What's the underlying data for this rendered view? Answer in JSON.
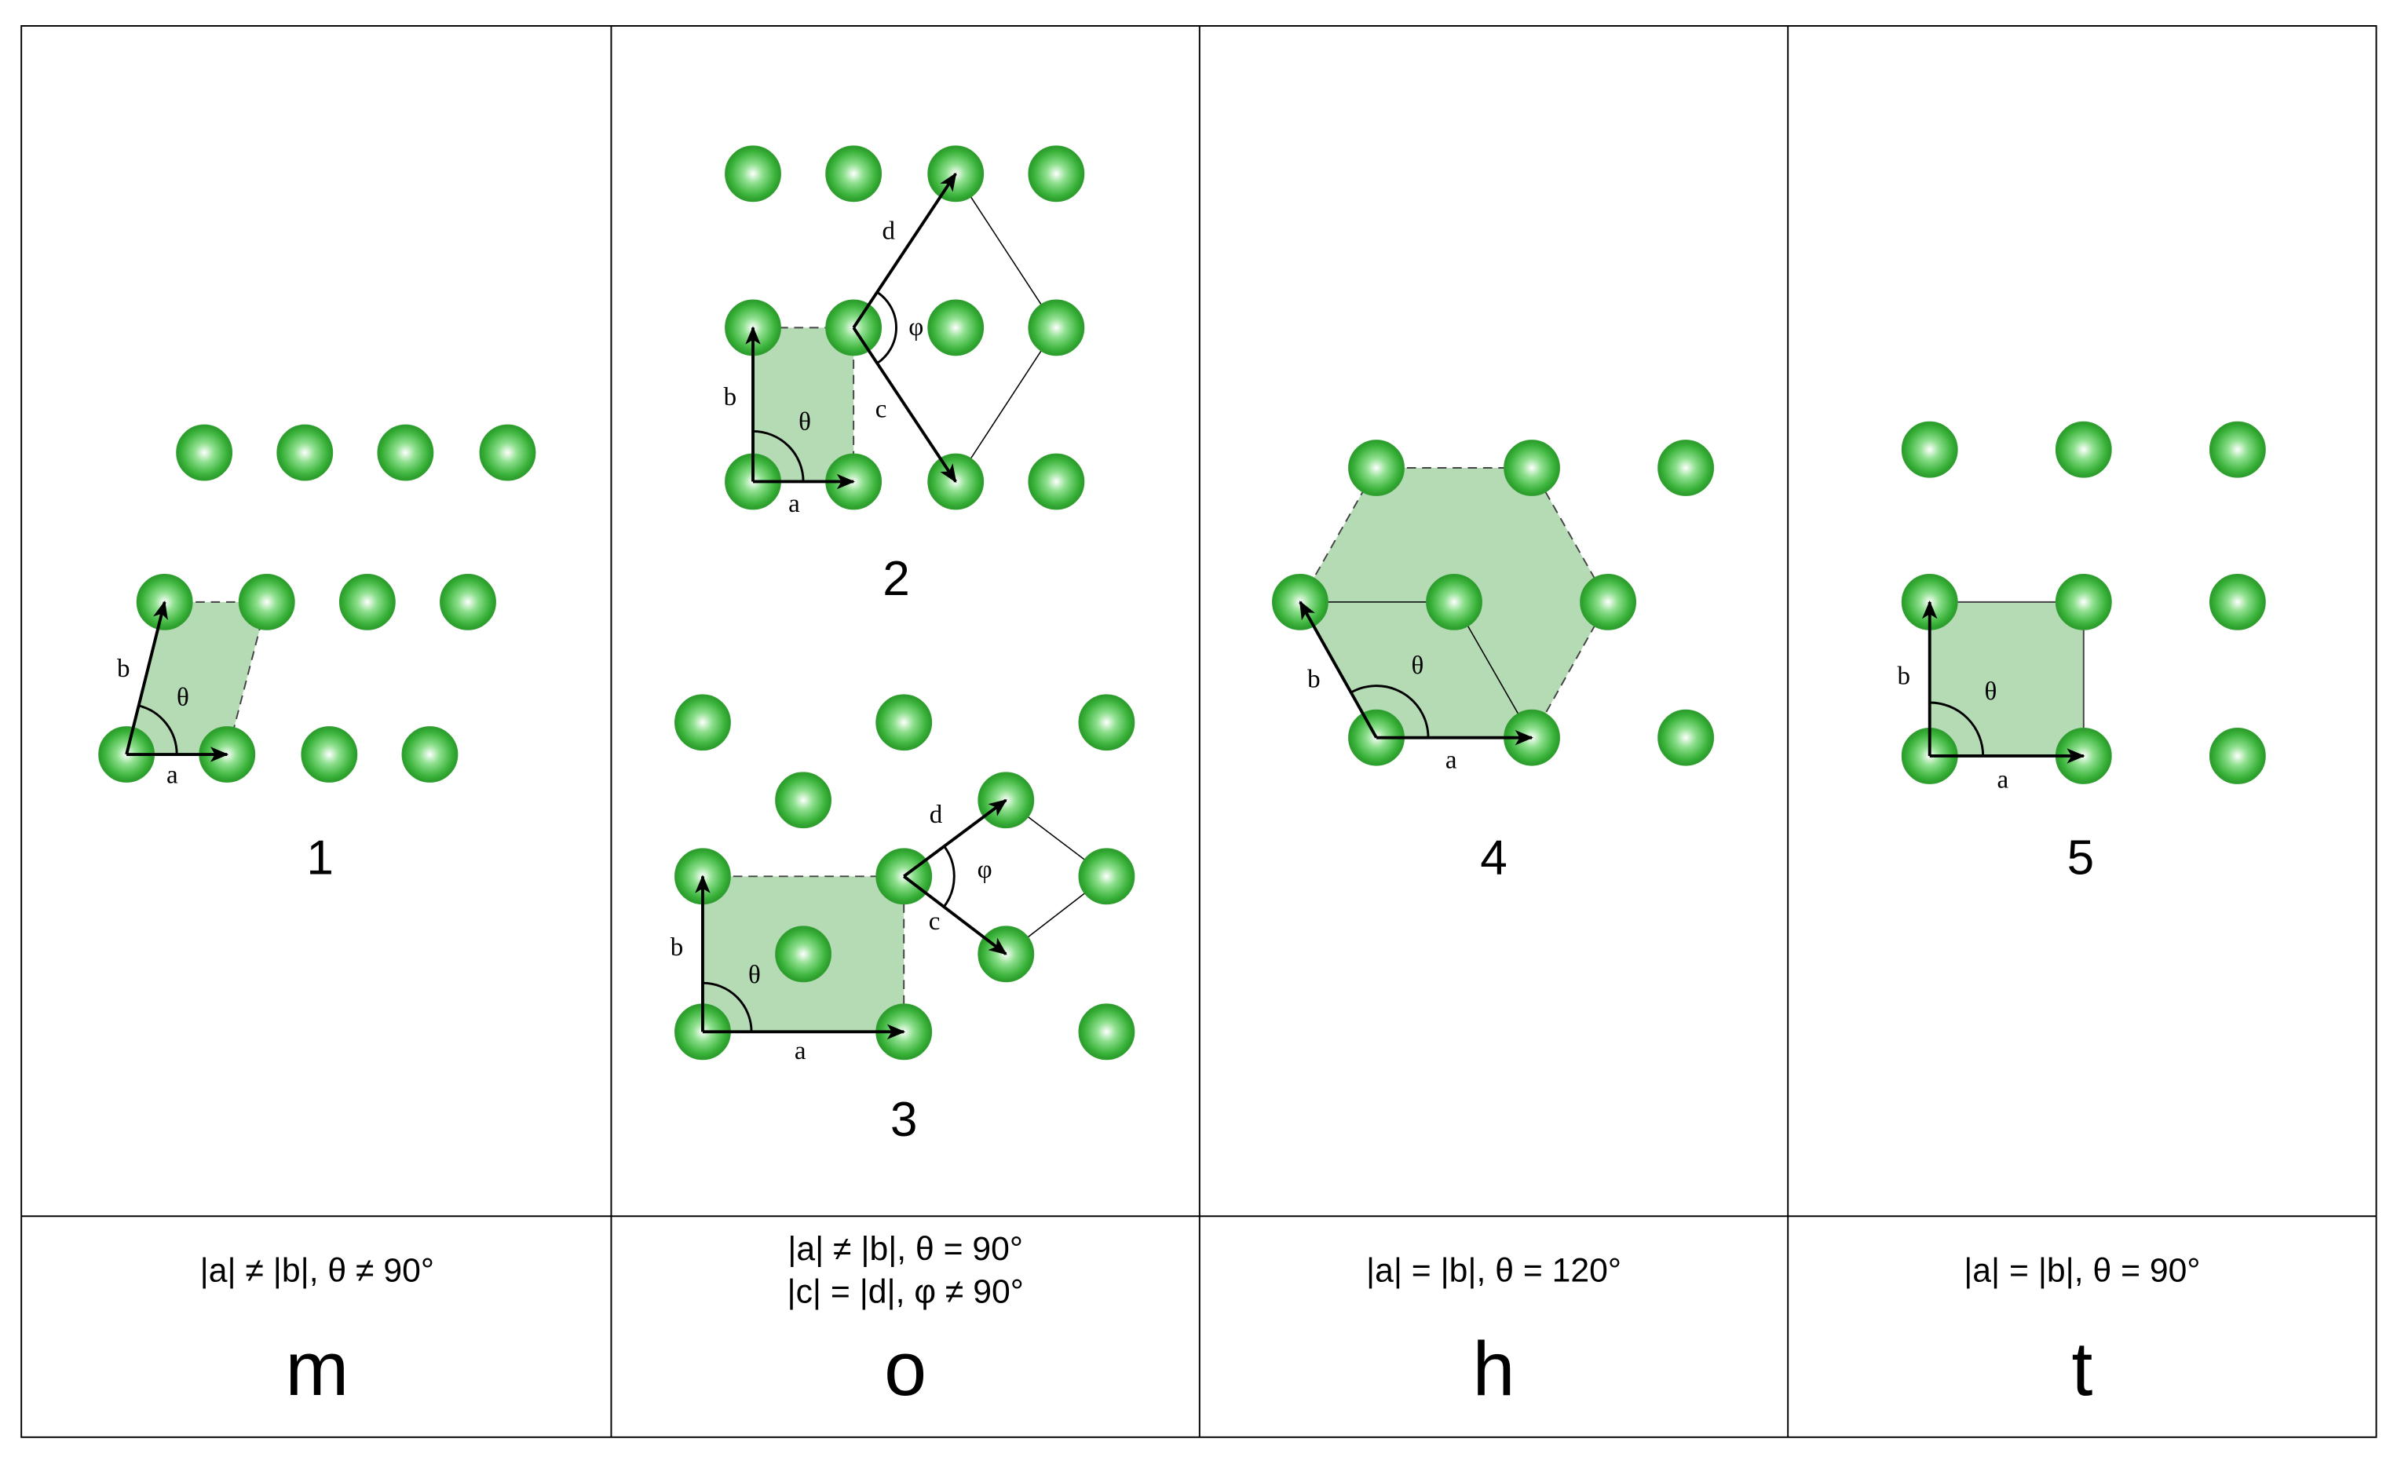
{
  "lattices": [
    {
      "number": "1",
      "a": "a",
      "b": "b",
      "theta": "θ"
    },
    {
      "number": "2",
      "a": "a",
      "b": "b",
      "theta": "θ",
      "c": "c",
      "d": "d",
      "phi": "φ"
    },
    {
      "number": "3",
      "a": "a",
      "b": "b",
      "theta": "θ",
      "c": "c",
      "d": "d",
      "phi": "φ"
    },
    {
      "number": "4",
      "a": "a",
      "b": "b",
      "theta": "θ"
    },
    {
      "number": "5",
      "a": "a",
      "b": "b",
      "theta": "θ"
    }
  ],
  "classes": [
    {
      "condition": [
        "|a| ≠ |b|, θ ≠ 90°"
      ],
      "symbol": "m"
    },
    {
      "condition": [
        "|a| ≠ |b|, θ = 90°",
        "|c| = |d|, φ ≠ 90°"
      ],
      "symbol": "o"
    },
    {
      "condition": [
        "|a| = |b|, θ = 120°"
      ],
      "symbol": "h"
    },
    {
      "condition": [
        "|a| = |b|, θ = 90°"
      ],
      "symbol": "t"
    }
  ]
}
